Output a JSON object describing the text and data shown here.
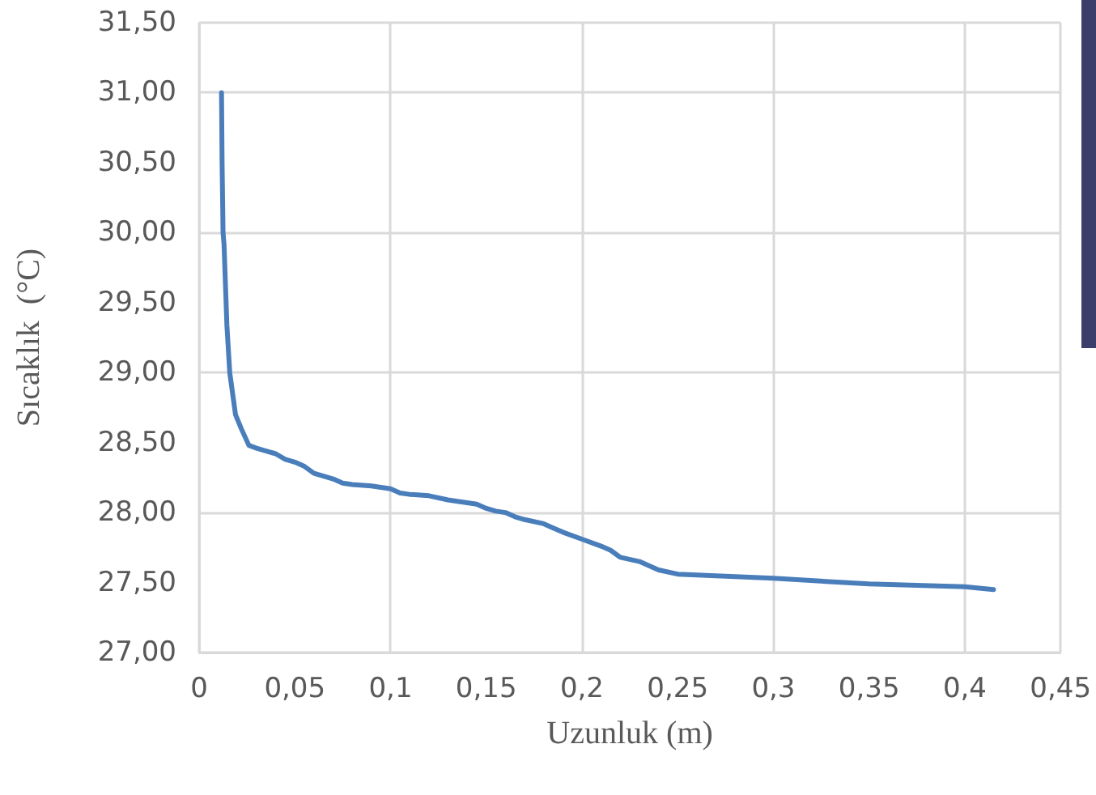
{
  "chart_data": {
    "type": "line",
    "xlabel": "Uzunluk (m)",
    "ylabel": "Sıcaklık  (°C)",
    "series": [
      {
        "color": "#4a7ebb",
        "x": [
          0.0117,
          0.012,
          0.0125,
          0.013,
          0.0145,
          0.016,
          0.019,
          0.022,
          0.026,
          0.03,
          0.035,
          0.04,
          0.045,
          0.05,
          0.055,
          0.06,
          0.065,
          0.07,
          0.075,
          0.08,
          0.09,
          0.1,
          0.105,
          0.11,
          0.12,
          0.13,
          0.14,
          0.145,
          0.15,
          0.155,
          0.16,
          0.165,
          0.17,
          0.18,
          0.185,
          0.19,
          0.2,
          0.21,
          0.215,
          0.22,
          0.23,
          0.235,
          0.24,
          0.25,
          0.3,
          0.35,
          0.4,
          0.415
        ],
        "values": [
          31.0,
          30.5,
          30.0,
          29.92,
          29.34,
          29.0,
          28.7,
          28.6,
          28.48,
          28.46,
          28.44,
          28.42,
          28.38,
          28.36,
          28.33,
          28.28,
          28.26,
          28.24,
          28.21,
          28.2,
          28.19,
          28.17,
          28.14,
          28.13,
          28.12,
          28.09,
          28.07,
          28.06,
          28.03,
          28.01,
          28.0,
          27.97,
          27.95,
          27.92,
          27.89,
          27.86,
          27.81,
          27.76,
          27.73,
          27.68,
          27.65,
          27.62,
          27.59,
          27.56,
          27.53,
          27.49,
          27.47,
          27.45
        ]
      }
    ],
    "xlim": [
      0,
      0.45
    ],
    "xticks": [
      0,
      {
        "value": 0.05,
        "label": "0,05"
      },
      {
        "value": 0.1,
        "label": "0,1"
      },
      {
        "value": 0.15,
        "label": "0,15"
      },
      {
        "value": 0.2,
        "label": "0,2"
      },
      {
        "value": 0.25,
        "label": "0,25"
      },
      {
        "value": 0.3,
        "label": "0,3"
      },
      {
        "value": 0.35,
        "label": "0,35"
      },
      {
        "value": 0.4,
        "label": "0,4"
      },
      {
        "value": 0.45,
        "label": "0,45"
      }
    ],
    "ylim": [
      27,
      31.5
    ],
    "yticks": [
      {
        "value": 27,
        "label": "27,00"
      },
      {
        "value": 27.5,
        "label": "27,50"
      },
      {
        "value": 28,
        "label": "28,00"
      },
      {
        "value": 28.5,
        "label": "28,50"
      },
      {
        "value": 29,
        "label": "29,00"
      },
      {
        "value": 29.5,
        "label": "29,50"
      },
      {
        "value": 30,
        "label": "30,00"
      },
      {
        "value": 30.5,
        "label": "30,50"
      },
      {
        "value": 31,
        "label": "31,00"
      },
      {
        "value": 31.5,
        "label": "31,50"
      }
    ],
    "grid": true,
    "marker": "none",
    "line_style": "solid"
  }
}
